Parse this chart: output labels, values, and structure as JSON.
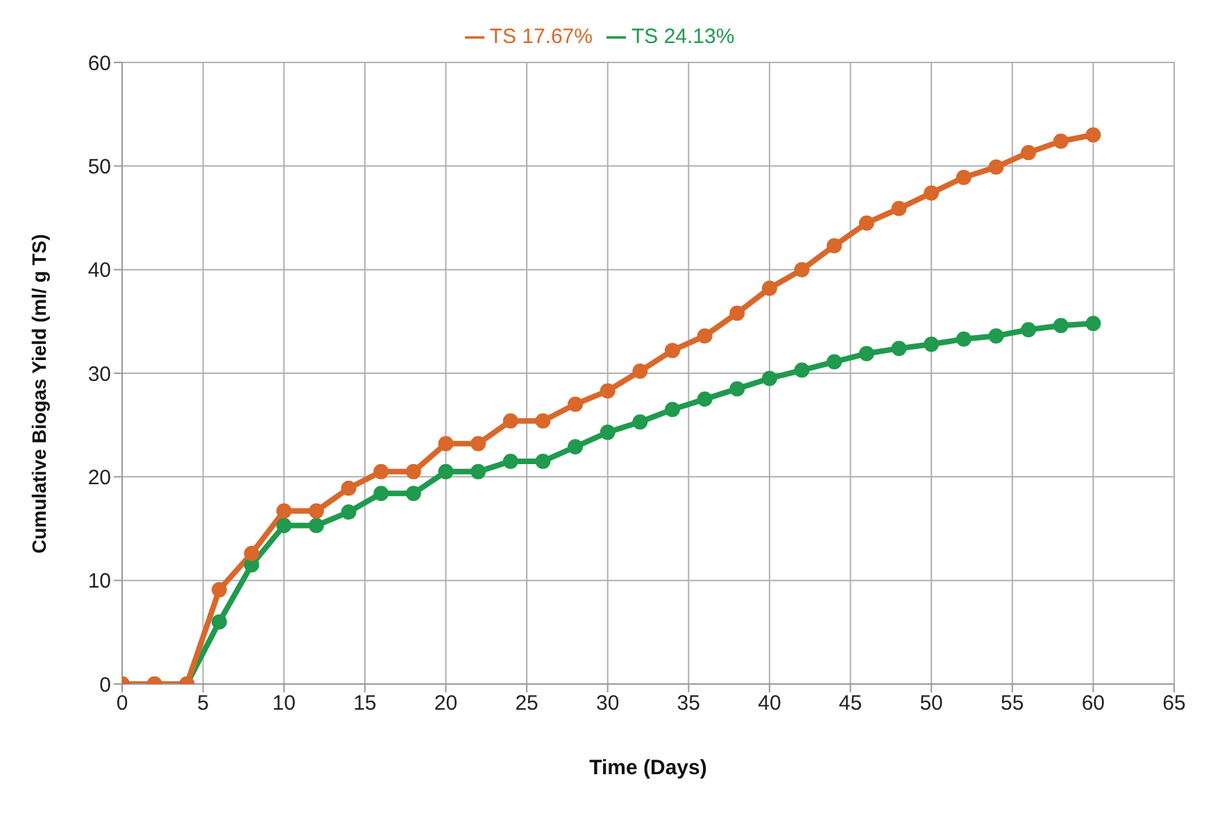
{
  "chart_data": {
    "type": "line",
    "xlabel": "Time (Days)",
    "ylabel": "Cumulative Biogas Yield (ml/ g TS)",
    "x": [
      0,
      2,
      4,
      6,
      8,
      10,
      12,
      14,
      16,
      18,
      20,
      22,
      24,
      26,
      28,
      30,
      32,
      34,
      36,
      38,
      40,
      42,
      44,
      46,
      48,
      50,
      52,
      54,
      56,
      58,
      60
    ],
    "series": [
      {
        "name": "TS 24.13%",
        "color": "#1f9a4e",
        "values": [
          0,
          0,
          0,
          6,
          11.5,
          15.3,
          15.3,
          16.6,
          18.4,
          18.4,
          20.5,
          20.5,
          21.5,
          21.5,
          22.9,
          24.3,
          25.3,
          26.5,
          27.5,
          28.5,
          29.5,
          30.3,
          31.1,
          31.9,
          32.4,
          32.8,
          33.3,
          33.6,
          34.2,
          34.6,
          34.8
        ]
      },
      {
        "name": "TS 17.67%",
        "color": "#d9682a",
        "values": [
          0,
          0,
          0,
          9.1,
          12.6,
          16.7,
          16.7,
          18.9,
          20.5,
          20.5,
          23.2,
          23.2,
          25.4,
          25.4,
          27,
          28.3,
          30.2,
          32.2,
          33.6,
          35.8,
          38.2,
          40,
          42.3,
          44.5,
          45.9,
          47.4,
          48.9,
          49.9,
          51.3,
          52.4,
          53
        ]
      }
    ],
    "xlim": [
      0,
      65
    ],
    "xticks": [
      0,
      5,
      10,
      15,
      20,
      25,
      30,
      35,
      40,
      45,
      50,
      55,
      60,
      65
    ],
    "ylim": [
      0,
      60
    ],
    "yticks": [
      0,
      10,
      20,
      30,
      40,
      50,
      60
    ],
    "grid": true,
    "legend": "top",
    "marker": "circle",
    "line_style": "solid"
  }
}
